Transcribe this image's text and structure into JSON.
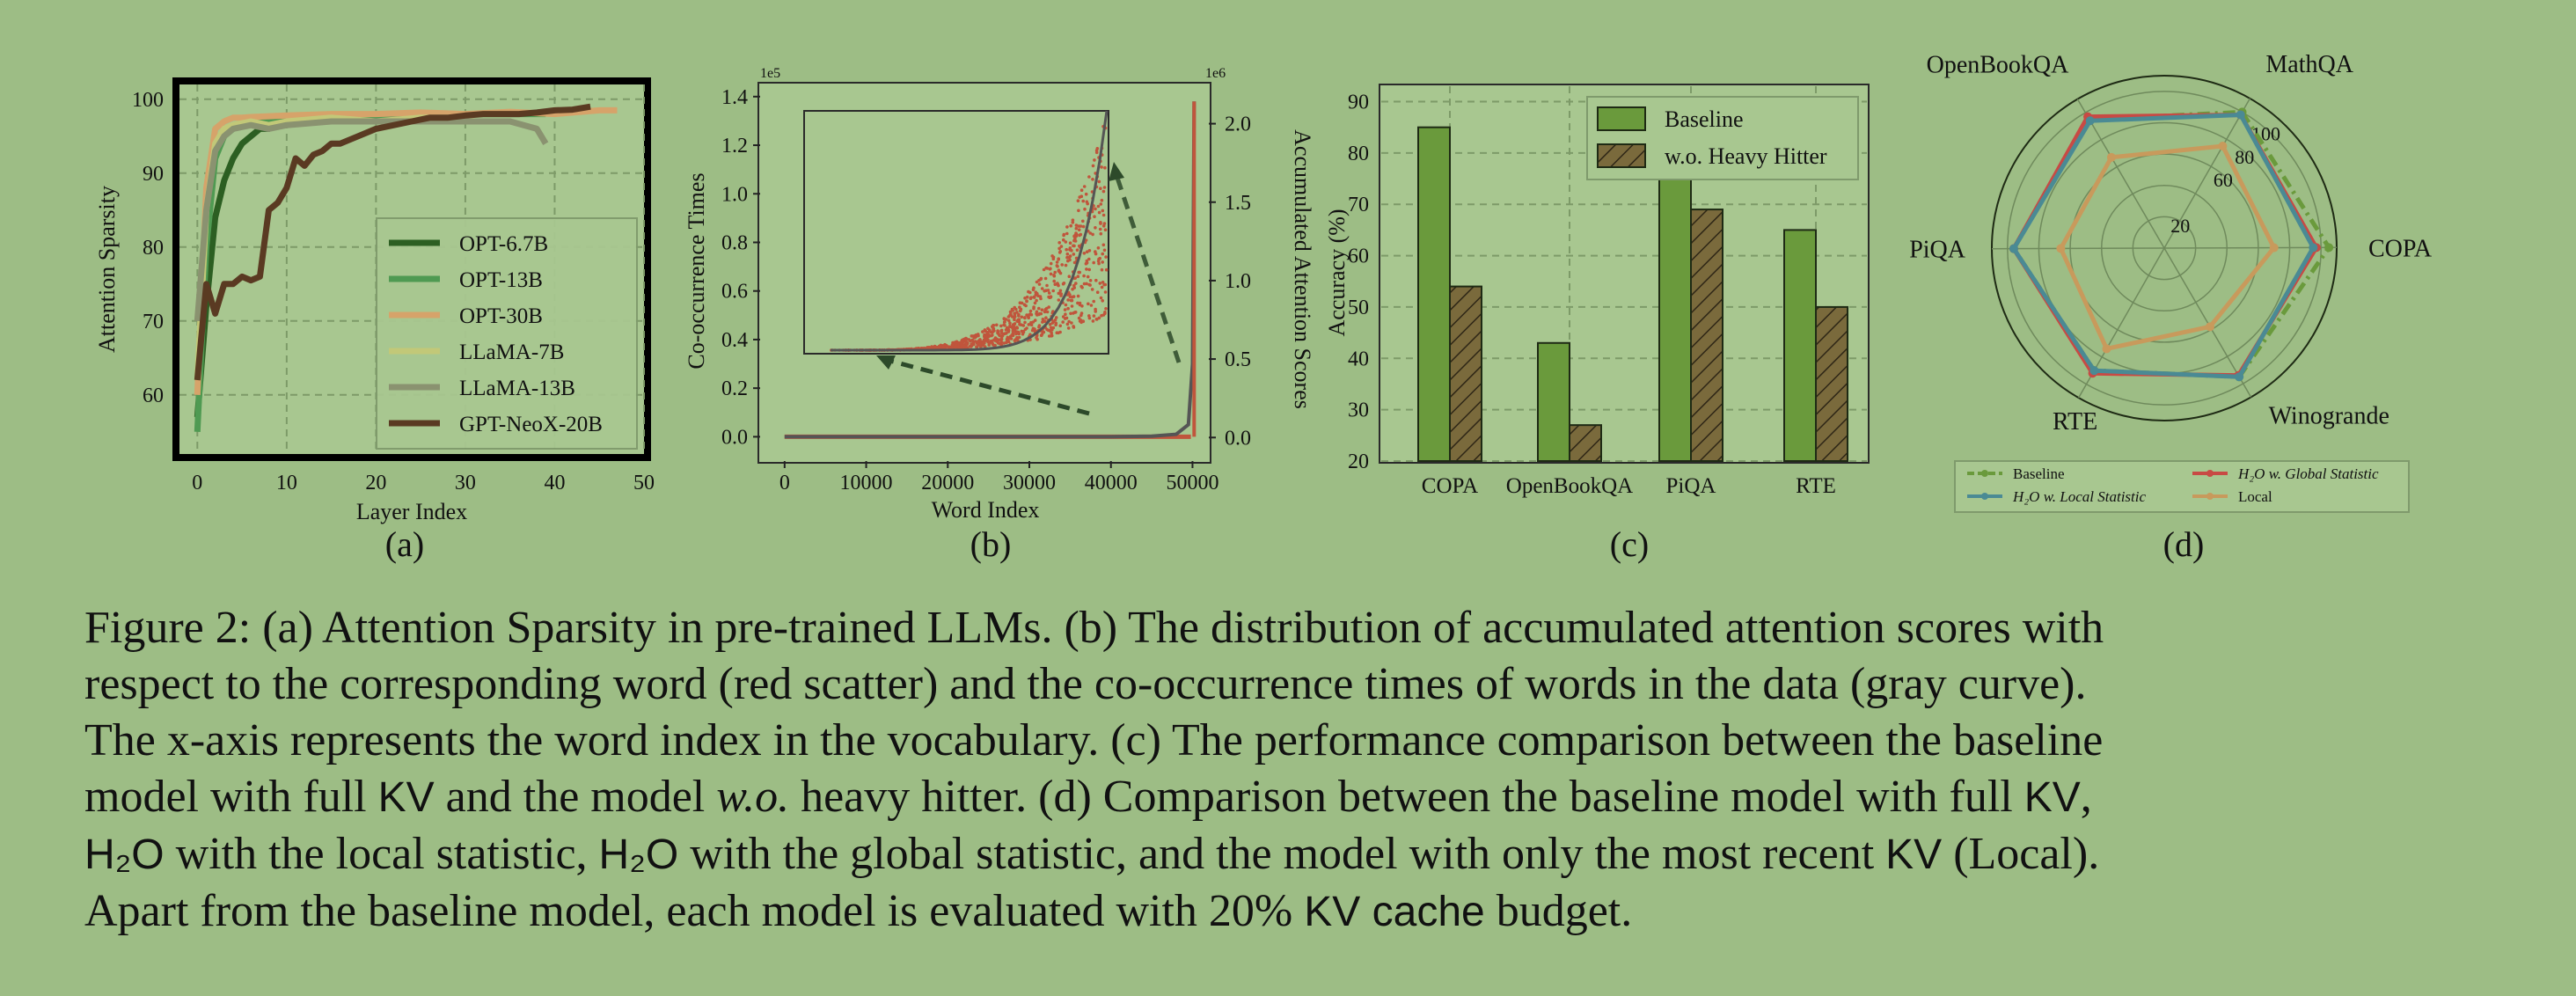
{
  "panels": {
    "a": {
      "label": "(a)",
      "xlabel": "Layer Index",
      "ylabel": "Attention Sparsity",
      "xticks": [
        "0",
        "10",
        "20",
        "30",
        "40",
        "50"
      ],
      "yticks": [
        "60",
        "70",
        "80",
        "90",
        "100"
      ],
      "legend": [
        "OPT-6.7B",
        "OPT-13B",
        "OPT-30B",
        "LLaMA-7B",
        "LLaMA-13B",
        "GPT-NeoX-20B"
      ]
    },
    "b": {
      "label": "(b)",
      "xlabel": "Word Index",
      "ylabel_left": "Co-occurrence Times",
      "ylabel_right": "Accumulated Attention Scores",
      "left_exp": "1e5",
      "right_exp": "1e6",
      "xticks": [
        "0",
        "10000",
        "20000",
        "30000",
        "40000",
        "50000"
      ],
      "yticks_left": [
        "0.0",
        "0.2",
        "0.4",
        "0.6",
        "0.8",
        "1.0",
        "1.2",
        "1.4"
      ],
      "yticks_right": [
        "0.0",
        "0.5",
        "1.0",
        "1.5",
        "2.0"
      ]
    },
    "c": {
      "label": "(c)",
      "ylabel": "Accuracy (%)",
      "yticks": [
        "20",
        "30",
        "40",
        "50",
        "60",
        "70",
        "80",
        "90"
      ],
      "legend": [
        "Baseline",
        "w.o. Heavy Hitter"
      ]
    },
    "d": {
      "label": "(d)",
      "axes": [
        "MathQA",
        "COPA",
        "Winogrande",
        "RTE",
        "PiQA",
        "OpenBookQA"
      ],
      "rticks": [
        "20",
        "60",
        "80",
        "100"
      ],
      "legend": [
        "Baseline",
        "H₂O w. Global Statistic",
        "H₂O w. Local Statistic",
        "Local"
      ]
    }
  },
  "chart_data": [
    {
      "type": "line",
      "title": "",
      "xlabel": "Layer Index",
      "ylabel": "Attention Sparsity",
      "xlim": [
        -2,
        50
      ],
      "ylim": [
        52,
        102
      ],
      "series": [
        {
          "name": "OPT-6.7B",
          "color": "#2c5f22",
          "x": [
            0,
            1,
            2,
            3,
            4,
            5,
            6,
            7,
            8,
            9,
            10,
            12,
            14,
            16,
            18,
            20,
            25,
            31
          ],
          "y": [
            57,
            72,
            84,
            89,
            92,
            94,
            95,
            96,
            96,
            96.5,
            97,
            97,
            97.3,
            97.5,
            97.6,
            97.8,
            98,
            98
          ]
        },
        {
          "name": "OPT-13B",
          "color": "#4f9a52",
          "x": [
            0,
            1,
            2,
            3,
            4,
            5,
            6,
            8,
            10,
            15,
            20,
            25,
            30,
            35,
            39
          ],
          "y": [
            55,
            80,
            92,
            95,
            96,
            96.5,
            97,
            97,
            97.3,
            97.6,
            97.8,
            98,
            98,
            98,
            98
          ]
        },
        {
          "name": "OPT-30B",
          "color": "#d6a36a",
          "x": [
            0,
            1,
            2,
            3,
            4,
            5,
            6,
            10,
            15,
            20,
            25,
            30,
            35,
            40,
            45,
            47
          ],
          "y": [
            60,
            88,
            96,
            97,
            97.5,
            97.5,
            97.6,
            97.8,
            98,
            98,
            98.2,
            98,
            98.3,
            98,
            98.5,
            98.5
          ]
        },
        {
          "name": "LLaMA-7B",
          "color": "#c2c878",
          "x": [
            0,
            1,
            2,
            3,
            4,
            6,
            8,
            10,
            15,
            20,
            25,
            30,
            31
          ],
          "y": [
            62,
            85,
            94,
            96,
            96.5,
            97,
            96.5,
            97,
            97.5,
            97,
            97.5,
            97.5,
            97
          ]
        },
        {
          "name": "LLaMA-13B",
          "color": "#8a9270",
          "x": [
            0,
            1,
            2,
            3,
            4,
            6,
            8,
            10,
            15,
            20,
            25,
            30,
            35,
            38,
            39
          ],
          "y": [
            70,
            85,
            93,
            95,
            96,
            96.5,
            96,
            96.5,
            97,
            97,
            97,
            97,
            97,
            96,
            94
          ]
        },
        {
          "name": "GPT-NeoX-20B",
          "color": "#5a3a22",
          "x": [
            0,
            1,
            2,
            3,
            4,
            5,
            6,
            7,
            8,
            9,
            10,
            11,
            12,
            13,
            14,
            15,
            16,
            18,
            20,
            22,
            24,
            26,
            28,
            30,
            32,
            34,
            36,
            38,
            40,
            42,
            44
          ],
          "y": [
            62,
            75,
            71,
            75,
            75,
            76,
            75.5,
            76,
            85,
            86,
            88,
            92,
            91,
            92.5,
            93,
            94,
            94,
            95,
            96,
            96.5,
            97,
            97.5,
            97.5,
            97.8,
            98,
            98,
            98,
            98.2,
            98.5,
            98.6,
            99
          ]
        }
      ]
    },
    {
      "type": "scatter",
      "title": "",
      "xlabel": "Word Index",
      "ylabel_left": "Co-occurrence Times",
      "ylabel_right": "Accumulated Attention Scores",
      "xlim": [
        -3000,
        52000
      ],
      "ylim_left": [
        -0.1,
        1.45
      ],
      "ylim_right": [
        -0.15,
        2.25
      ],
      "series": [
        {
          "name": "accumulated attention (scatter)",
          "color": "#c0553c",
          "shape": "rising scatter, near zero until ~48000 then spike"
        },
        {
          "name": "co-occurrence (curve)",
          "color": "#555555",
          "x": [
            0,
            10000,
            20000,
            30000,
            40000,
            45000,
            48000,
            49500,
            50000,
            50200
          ],
          "y": [
            0,
            0,
            0,
            0,
            0,
            0.002,
            0.01,
            0.05,
            0.3,
            1.38
          ]
        }
      ],
      "inset": {
        "type": "scatter",
        "description": "zoomed view of the tail"
      }
    },
    {
      "type": "bar",
      "title": "",
      "ylabel": "Accuracy (%)",
      "categories": [
        "COPA",
        "OpenBookQA",
        "PiQA",
        "RTE"
      ],
      "ylim": [
        20,
        93
      ],
      "series": [
        {
          "name": "Baseline",
          "color": "#6a9a3c",
          "values": [
            85,
            43,
            78,
            65
          ]
        },
        {
          "name": "w.o. Heavy Hitter",
          "color": "#7a6a3c",
          "hatch": true,
          "values": [
            54,
            27,
            69,
            50
          ]
        }
      ]
    },
    {
      "type": "radar",
      "title": "",
      "axes": [
        "MathQA",
        "COPA",
        "Winogrande",
        "RTE",
        "PiQA",
        "OpenBookQA"
      ],
      "rlim": [
        0,
        110
      ],
      "series": [
        {
          "name": "Baseline",
          "color": "#6a9a3c",
          "dashed": true,
          "values": [
            100,
            105,
            95,
            90,
            96,
            95
          ]
        },
        {
          "name": "H₂O w. Global Statistic",
          "color": "#c84a44",
          "values": [
            98,
            97,
            94,
            92,
            96,
            97
          ]
        },
        {
          "name": "H₂O w. Local Statistic",
          "color": "#4a8a94",
          "values": [
            98,
            95,
            95,
            90,
            96,
            94
          ]
        },
        {
          "name": "Local",
          "color": "#c89a5c",
          "values": [
            75,
            70,
            58,
            74,
            66,
            67
          ]
        }
      ]
    }
  ],
  "caption": {
    "line1": "Figure 2: (a) Attention Sparsity in pre-trained LLMs. (b) The distribution of accumulated attention scores with",
    "line2": "respect to the corresponding word (red scatter) and the co-occurrence times of words in the data (gray curve).",
    "line3": "The x-axis represents the word index in the vocabulary. (c) The performance comparison between the baseline",
    "line4_a": "model with full ",
    "kv": "KV",
    "line4_b": " and the model ",
    "wo": "w.o.",
    "line4_c": " heavy hitter. (d) Comparison between the baseline model with full ",
    "line4_d": ",",
    "h2o": "H₂O",
    "line5_a": " with the local statistic, ",
    "line5_b": " with the global statistic, and the model with only the most recent ",
    "line5_c": " (Local).",
    "line6_a": "Apart from the baseline model, each model is evaluated with 20",
    "pct": "%",
    "line6_b": " ",
    "kvcache": "KV cache",
    "line6_c": " budget."
  }
}
